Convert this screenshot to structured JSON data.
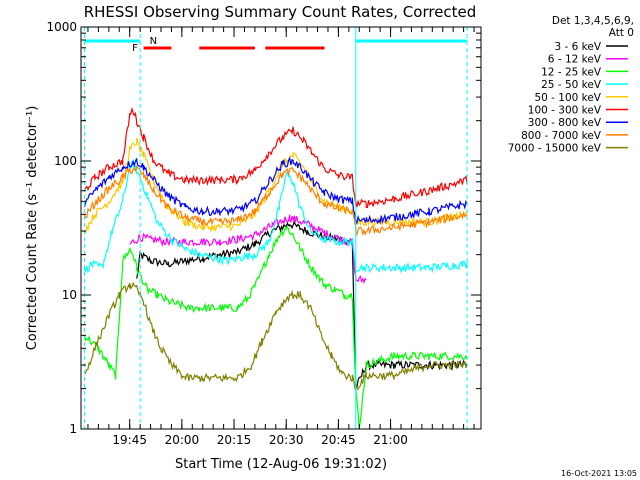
{
  "chart_data": {
    "type": "line",
    "title": "RHESSI Observing Summary Count Rates, Corrected",
    "xlabel": "Start Time (12-Aug-06 19:31:02)",
    "ylabel": "Corrected Count Rate (s⁻¹ detector⁻¹)",
    "x_unit": "minutes after 19:31:02",
    "xlim": [
      0,
      115
    ],
    "ylim": [
      1,
      1000
    ],
    "yscale": "log",
    "x_tick_labels": [
      "19:45",
      "20:00",
      "20:15",
      "20:30",
      "20:45",
      "21:00"
    ],
    "x_tick_values": [
      14,
      29,
      44,
      59,
      74,
      89
    ],
    "y_tick_labels": [
      "1",
      "10",
      "100",
      "1000"
    ],
    "y_tick_values": [
      1,
      10,
      100,
      1000
    ],
    "legend_header": [
      "Det 1,3,4,5,6,9,",
      "Att 0"
    ],
    "legend_position": "right",
    "timestamp": "16-Oct-2021 13:05",
    "markers": {
      "N_label": "N",
      "F_label": "F",
      "vertical_lines_x": [
        1,
        17,
        79,
        111
      ],
      "night_bars": [
        [
          1,
          17
        ],
        [
          79,
          111
        ]
      ],
      "flare_bars": [
        [
          18,
          26
        ],
        [
          34,
          50
        ],
        [
          53,
          70
        ]
      ]
    },
    "series": [
      {
        "name": "3 - 6 keV",
        "color": "#000000",
        "x": [
          0,
          8,
          14,
          16,
          17,
          20,
          25,
          30,
          35,
          40,
          45,
          50,
          55,
          60,
          65,
          70,
          75,
          78,
          79,
          82,
          90,
          100,
          111
        ],
        "y": [
          null,
          null,
          null,
          13,
          20,
          18,
          17,
          18,
          19,
          20,
          21,
          24,
          30,
          34,
          30,
          27,
          26,
          25,
          2,
          3,
          3,
          3,
          3
        ]
      },
      {
        "name": "6 - 12 keV",
        "color": "#ff00ff",
        "x": [
          14,
          17,
          20,
          25,
          30,
          35,
          40,
          45,
          50,
          55,
          60,
          65,
          70,
          75,
          78,
          79,
          82
        ],
        "y": [
          24,
          27,
          26,
          25,
          25,
          25,
          25,
          26,
          28,
          33,
          38,
          34,
          29,
          26,
          24,
          13,
          13
        ]
      },
      {
        "name": "12 - 25 keV",
        "color": "#00ff00",
        "x": [
          1,
          5,
          8,
          10,
          12,
          14,
          15,
          16,
          17,
          19,
          22,
          25,
          28,
          31,
          34,
          38,
          42,
          45,
          48,
          51,
          54,
          57,
          59,
          61,
          64,
          67,
          70,
          73,
          76,
          78,
          79,
          80,
          82,
          90,
          100,
          111
        ],
        "y": [
          5,
          4,
          3,
          2.5,
          18,
          22,
          20,
          16,
          14,
          11,
          10,
          9,
          8.5,
          8,
          8,
          8,
          8,
          8,
          9.5,
          13,
          20,
          28,
          32,
          28,
          20,
          15,
          12,
          11,
          10,
          10,
          2,
          1,
          3,
          3.5,
          3.5,
          3.5
        ]
      },
      {
        "name": "25 - 50 keV",
        "color": "#00ffff",
        "x": [
          1,
          3,
          6,
          9,
          12,
          14,
          15,
          16,
          17,
          19,
          22,
          26,
          30,
          34,
          38,
          42,
          46,
          50,
          54,
          57,
          59,
          61,
          63,
          66,
          70,
          74,
          78,
          79,
          82,
          90,
          100,
          111
        ],
        "y": [
          15,
          17,
          16,
          30,
          50,
          90,
          95,
          85,
          75,
          55,
          35,
          26,
          22,
          20,
          19,
          18,
          19,
          20,
          25,
          45,
          80,
          70,
          45,
          30,
          26,
          25,
          25,
          16,
          16,
          16,
          16,
          17
        ]
      },
      {
        "name": "50 - 100 keV",
        "color": "#ffc800",
        "x": [
          1,
          4,
          8,
          12,
          14,
          16,
          18,
          21,
          25,
          30,
          35,
          40,
          45,
          50,
          54,
          58,
          61,
          64,
          67,
          70,
          74,
          78,
          79,
          82,
          90,
          100,
          111
        ],
        "y": [
          30,
          40,
          50,
          70,
          120,
          140,
          110,
          70,
          45,
          35,
          32,
          32,
          33,
          40,
          60,
          95,
          110,
          90,
          65,
          50,
          45,
          42,
          35,
          35,
          35,
          35,
          40
        ]
      },
      {
        "name": "100 - 300 keV",
        "color": "#ff0000",
        "x": [
          1,
          4,
          8,
          12,
          14,
          15,
          16,
          18,
          21,
          25,
          30,
          35,
          40,
          45,
          50,
          54,
          58,
          61,
          64,
          67,
          70,
          74,
          78,
          79,
          82,
          90,
          100,
          111
        ],
        "y": [
          60,
          75,
          90,
          100,
          220,
          240,
          200,
          150,
          100,
          80,
          72,
          72,
          72,
          73,
          85,
          115,
          150,
          170,
          140,
          110,
          88,
          78,
          75,
          48,
          48,
          52,
          60,
          72
        ]
      },
      {
        "name": "300 - 800 keV",
        "color": "#0000ff",
        "x": [
          1,
          4,
          8,
          12,
          14,
          16,
          18,
          21,
          25,
          30,
          35,
          40,
          45,
          50,
          54,
          58,
          61,
          64,
          67,
          70,
          74,
          78,
          79,
          82,
          90,
          100,
          111
        ],
        "y": [
          48,
          60,
          75,
          90,
          95,
          100,
          90,
          72,
          55,
          45,
          42,
          42,
          43,
          50,
          70,
          95,
          100,
          85,
          68,
          58,
          52,
          50,
          36,
          36,
          38,
          42,
          48
        ]
      },
      {
        "name": "800 - 7000 keV",
        "color": "#ff8000",
        "x": [
          1,
          4,
          8,
          12,
          14,
          16,
          18,
          21,
          25,
          30,
          35,
          40,
          45,
          50,
          54,
          58,
          61,
          64,
          67,
          70,
          74,
          78,
          79,
          82,
          90,
          100,
          111
        ],
        "y": [
          38,
          48,
          62,
          75,
          85,
          88,
          78,
          60,
          45,
          38,
          35,
          35,
          36,
          42,
          58,
          80,
          85,
          72,
          57,
          48,
          44,
          42,
          30,
          30,
          32,
          35,
          40
        ]
      },
      {
        "name": "7000 - 15000 keV",
        "color": "#808000",
        "x": [
          1,
          4,
          8,
          11,
          14,
          16,
          18,
          20,
          23,
          26,
          30,
          35,
          40,
          45,
          49,
          52,
          56,
          60,
          63,
          66,
          69,
          72,
          75,
          78,
          79,
          82,
          90,
          100,
          111
        ],
        "y": [
          2.5,
          4,
          7,
          10,
          12,
          11,
          9,
          6,
          4,
          3,
          2.4,
          2.4,
          2.4,
          2.4,
          3,
          4.5,
          7.5,
          10,
          10,
          8,
          5,
          3.5,
          2.6,
          2.4,
          2,
          2.5,
          2.5,
          3,
          3
        ]
      }
    ]
  }
}
